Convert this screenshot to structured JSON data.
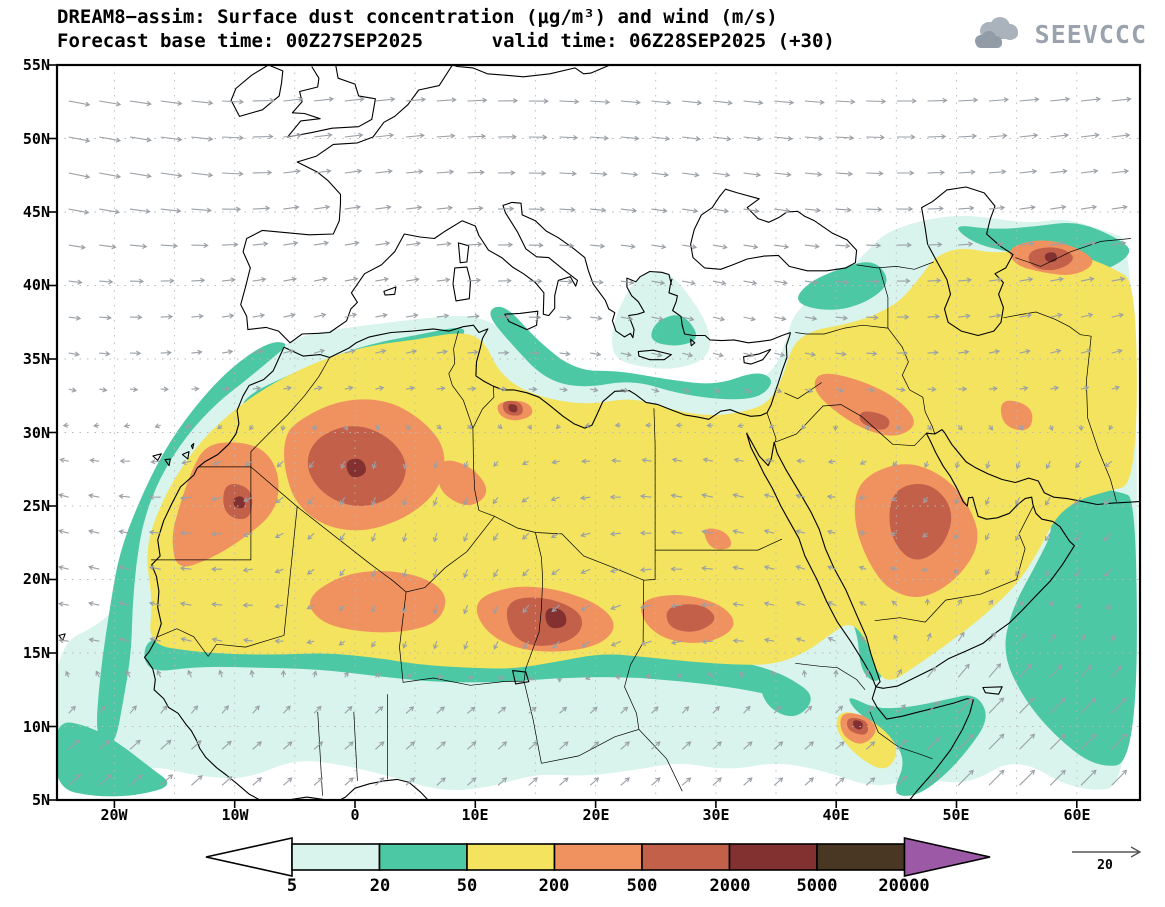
{
  "header": {
    "title_line1": "DREAM8−assim: Surface dust concentration (μg/m³) and wind (m/s)",
    "title_line2": "Forecast base time: 00Z27SEP2025      valid time: 06Z28SEP2025 (+30)",
    "logo_text": "SEEVCCC"
  },
  "map": {
    "y_axis_labels": [
      "55N",
      "50N",
      "45N",
      "40N",
      "35N",
      "30N",
      "25N",
      "20N",
      "15N",
      "10N",
      "5N"
    ],
    "x_axis_labels": [
      "20W",
      "10W",
      "0",
      "10E",
      "20E",
      "30E",
      "40E",
      "50E",
      "60E"
    ]
  },
  "legend": {
    "tick_labels": [
      "5",
      "20",
      "50",
      "200",
      "500",
      "2000",
      "5000",
      "20000"
    ],
    "colors": [
      "#ffffff",
      "#d8f4ec",
      "#4cc8a4",
      "#f3e35e",
      "#f09260",
      "#c2604a",
      "#823030",
      "#4a3723",
      "#9b59a6"
    ],
    "wind_reference_label": "20"
  },
  "chart_data": {
    "type": "filled-contour-map",
    "model": "DREAM8−assim",
    "variable": "Surface dust concentration",
    "units": "μg/m³",
    "wind_units": "m/s",
    "contour_levels": [
      5,
      20,
      50,
      200,
      500,
      2000,
      5000,
      20000
    ],
    "wind_reference_ms": 20,
    "base_time": "00Z27SEP2025",
    "valid_time": "06Z28SEP2025",
    "forecast_hour": "+30",
    "lat_ticks": [
      "55N",
      "50N",
      "45N",
      "40N",
      "35N",
      "30N",
      "25N",
      "20N",
      "15N",
      "10N",
      "5N"
    ],
    "lon_ticks": [
      "20W",
      "10W",
      "0",
      "10E",
      "20E",
      "30E",
      "40E",
      "50E",
      "60E"
    ]
  }
}
